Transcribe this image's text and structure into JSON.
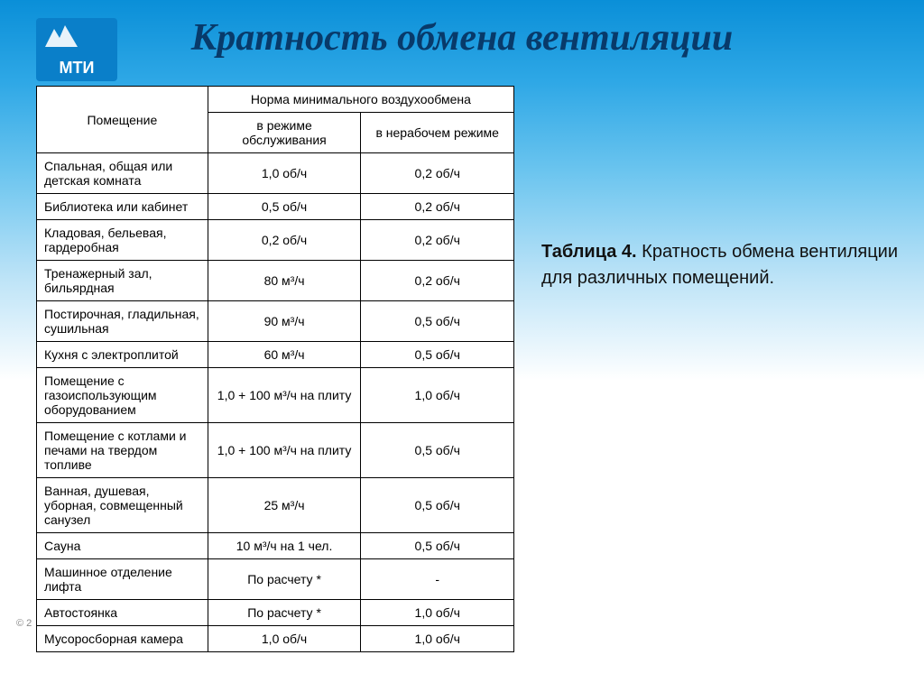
{
  "title": "Кратность  обмена вентиляции",
  "logo_text": "МТИ",
  "copyright": "© 2",
  "caption_bold": "Таблица 4.",
  "caption_rest": "   Кратность обмена вентиляции для различных помещений.",
  "table": {
    "header_room": "Помещение",
    "header_norm": "Норма минимального воздухообмена",
    "header_mode_service": "в режиме обслуживания",
    "header_mode_idle": "в нерабочем режиме",
    "rows": [
      {
        "room": "Спальная, общая или детская комната",
        "service": "1,0 об/ч",
        "idle": "0,2 об/ч"
      },
      {
        "room": "Библиотека или кабинет",
        "service": "0,5 об/ч",
        "idle": "0,2 об/ч"
      },
      {
        "room": "Кладовая, бельевая, гардеробная",
        "service": "0,2 об/ч",
        "idle": "0,2 об/ч"
      },
      {
        "room": "Тренажерный зал, бильярдная",
        "service": "80 м³/ч",
        "idle": "0,2 об/ч"
      },
      {
        "room": "Постирочная, гладильная, сушильная",
        "service": "90 м³/ч",
        "idle": "0,5 об/ч"
      },
      {
        "room": "Кухня с электроплитой",
        "service": "60 м³/ч",
        "idle": "0,5 об/ч"
      },
      {
        "room": "Помещение с газоиспользующим оборудованием",
        "service": "1,0 + 100 м³/ч на плиту",
        "idle": "1,0 об/ч"
      },
      {
        "room": "Помещение с котлами и печами на твердом топливе",
        "service": "1,0 + 100 м³/ч на плиту",
        "idle": "0,5 об/ч"
      },
      {
        "room": "Ванная, душевая, уборная, совмещенный санузел",
        "service": "25 м³/ч",
        "idle": "0,5 об/ч"
      },
      {
        "room": "Сауна",
        "service": "10 м³/ч на 1 чел.",
        "idle": "0,5 об/ч"
      },
      {
        "room": "Машинное отделение лифта",
        "service": "По расчету *",
        "idle": "-"
      },
      {
        "room": "Автостоянка",
        "service": "По расчету *",
        "idle": "1,0 об/ч"
      },
      {
        "room": "Мусоросборная камера",
        "service": "1,0 об/ч",
        "idle": "1,0 об/ч"
      }
    ]
  },
  "styles": {
    "slide_width": 1024,
    "slide_height": 767,
    "bg_gradient": [
      "#0a8fd8",
      "#2fa8e6",
      "#6cc5ef",
      "#bce3f7",
      "#ffffff"
    ],
    "title_color": "#083a6a",
    "title_fontsize": 42,
    "logo_bg": "#0a7fc9",
    "logo_color": "#ffffff",
    "table_border": "#000000",
    "table_bg": "#ffffff",
    "caption_fontsize": 20,
    "cell_fontsize": 14,
    "copyright_color": "#888888"
  }
}
